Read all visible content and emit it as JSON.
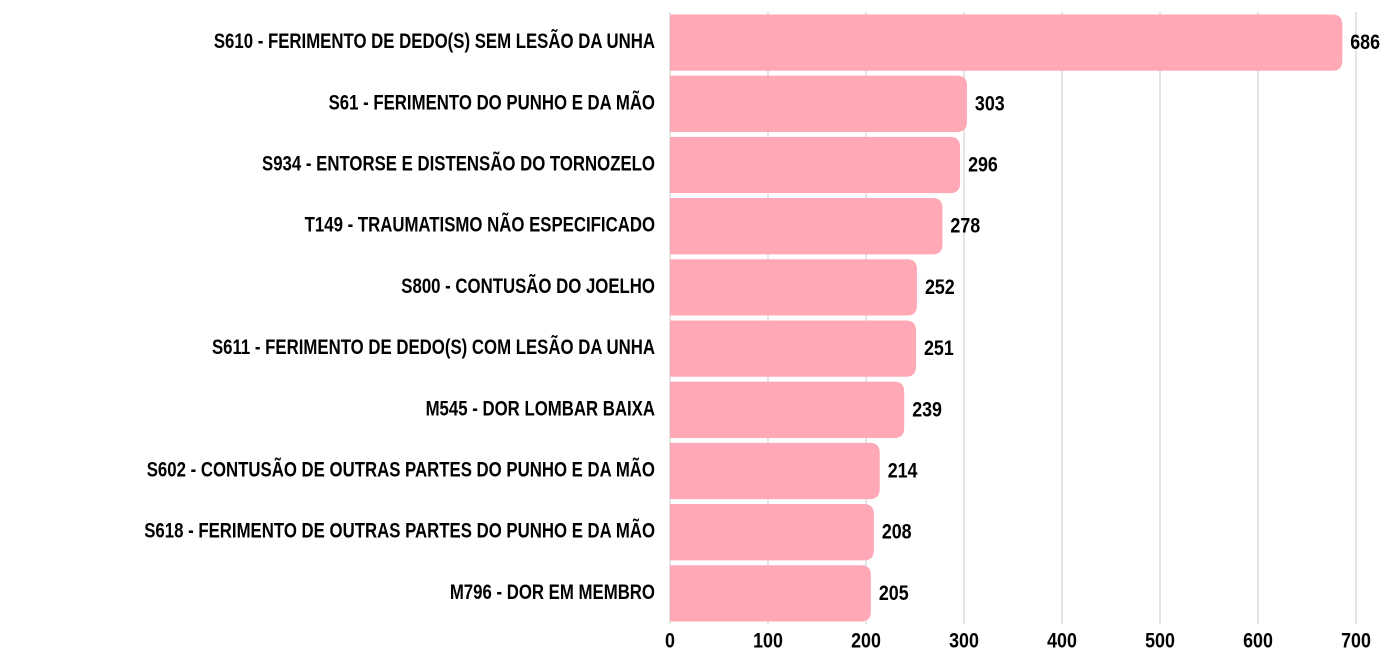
{
  "chart_data": {
    "type": "bar",
    "orientation": "horizontal",
    "categories": [
      "S610 - FERIMENTO DE DEDO(S) SEM LESÃO DA UNHA",
      "S61 - FERIMENTO DO PUNHO E DA MÃO",
      "S934 - ENTORSE E DISTENSÃO DO TORNOZELO",
      "T149 - TRAUMATISMO NÃO ESPECIFICADO",
      "S800 - CONTUSÃO DO JOELHO",
      "S611 - FERIMENTO DE DEDO(S) COM LESÃO DA UNHA",
      "M545 - DOR LOMBAR BAIXA",
      "S602 - CONTUSÃO DE OUTRAS PARTES DO PUNHO E DA MÃO",
      "S618 - FERIMENTO DE OUTRAS PARTES DO PUNHO E DA MÃO",
      "M796 - DOR EM MEMBRO"
    ],
    "values": [
      686,
      303,
      296,
      278,
      252,
      251,
      239,
      214,
      208,
      205
    ],
    "color": "#ffa9b7",
    "xlim": [
      0,
      700
    ],
    "xticks": [
      0,
      100,
      200,
      300,
      400,
      500,
      600,
      700
    ],
    "grid": true
  }
}
